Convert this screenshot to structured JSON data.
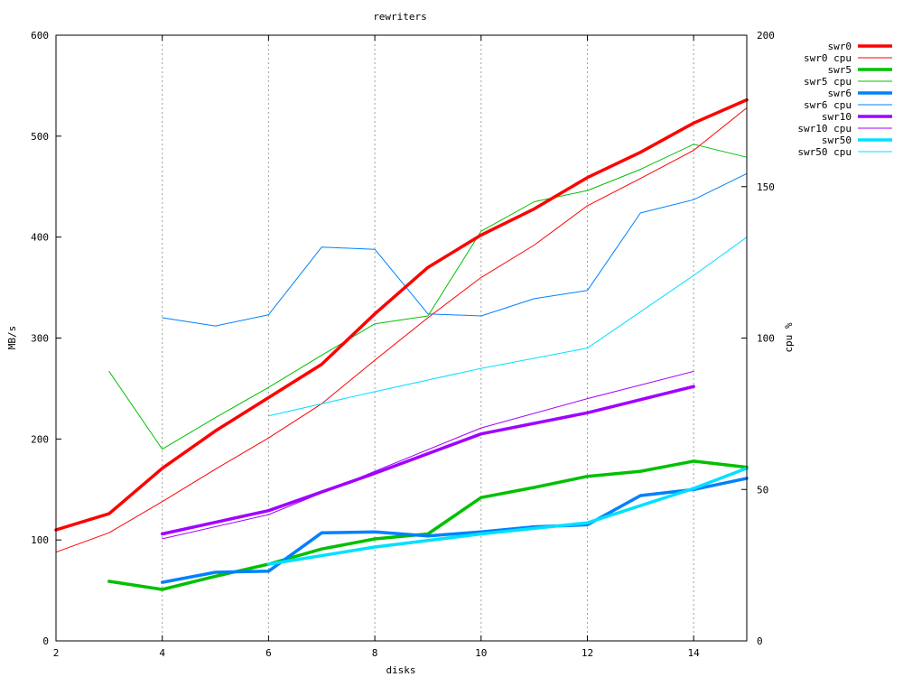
{
  "chart_data": {
    "type": "line",
    "title": "rewriters",
    "xlabel": "disks",
    "ylabel": "MB/s",
    "y2label": "cpu %",
    "xlim": [
      2,
      15
    ],
    "ylim": [
      0,
      600
    ],
    "y2lim": [
      0,
      200
    ],
    "x_ticks": [
      "2",
      "4",
      "6",
      "8",
      "10",
      "12",
      "14"
    ],
    "y_ticks": [
      "0",
      "100",
      "200",
      "300",
      "400",
      "500",
      "600"
    ],
    "y2_ticks": [
      "0",
      "50",
      "100",
      "150",
      "200"
    ],
    "grid": "vertical dotted at x ticks",
    "legend_position": "outside right, top",
    "series": [
      {
        "name": "swr0",
        "axis": "left",
        "color": "#ff0000",
        "thick": true,
        "x": [
          2,
          3,
          4,
          5,
          6,
          7,
          8,
          9,
          10,
          11,
          12,
          13,
          14,
          15
        ],
        "y": [
          110,
          126,
          171,
          208,
          241,
          274,
          324,
          370,
          402,
          428,
          459,
          484,
          513,
          536
        ]
      },
      {
        "name": "swr0 cpu",
        "axis": "right",
        "color": "#ff0000",
        "thick": false,
        "x": [
          2,
          3,
          4,
          5,
          6,
          7,
          8,
          9,
          10,
          11,
          12,
          13,
          14,
          15
        ],
        "y": [
          29.3,
          35.7,
          46,
          56.7,
          67,
          78.3,
          92.7,
          106.7,
          120,
          130.7,
          143.7,
          152.7,
          162,
          176
        ]
      },
      {
        "name": "swr5",
        "axis": "left",
        "color": "#00c000",
        "thick": true,
        "x": [
          3,
          4,
          5,
          6,
          7,
          8,
          9,
          10,
          11,
          12,
          13,
          14,
          15
        ],
        "y": [
          59,
          51,
          64,
          76,
          91,
          101,
          106,
          142,
          152,
          163,
          168,
          178,
          172
        ]
      },
      {
        "name": "swr5 cpu",
        "axis": "right",
        "color": "#00c000",
        "thick": false,
        "x": [
          3,
          4,
          5,
          6,
          7,
          8,
          9,
          10,
          11,
          12,
          13,
          14,
          15
        ],
        "y": [
          89,
          63.3,
          73.7,
          83.7,
          94.3,
          104.7,
          107.3,
          135.3,
          145,
          148.7,
          155.7,
          164,
          159.7
        ]
      },
      {
        "name": "swr6",
        "axis": "left",
        "color": "#0080ff",
        "thick": true,
        "x": [
          4,
          5,
          6,
          7,
          8,
          9,
          10,
          11,
          12,
          13,
          14,
          15
        ],
        "y": [
          58,
          68,
          69,
          107,
          108,
          104,
          108,
          113,
          115,
          144,
          150,
          161
        ]
      },
      {
        "name": "swr6 cpu",
        "axis": "right",
        "color": "#0080ff",
        "thick": false,
        "x": [
          4,
          5,
          6,
          7,
          8,
          9,
          10,
          11,
          12,
          13,
          14,
          15
        ],
        "y": [
          106.7,
          104,
          107.7,
          130,
          129.3,
          108,
          107.3,
          113,
          115.7,
          141.3,
          145.7,
          154.3
        ]
      },
      {
        "name": "swr10",
        "axis": "left",
        "color": "#a000ff",
        "thick": true,
        "x": [
          4,
          6,
          8,
          10,
          12,
          14
        ],
        "y": [
          106,
          129,
          166,
          205,
          226,
          252
        ]
      },
      {
        "name": "swr10 cpu",
        "axis": "right",
        "color": "#a000ff",
        "thick": false,
        "x": [
          4,
          6,
          8,
          10,
          12,
          14
        ],
        "y": [
          33.7,
          41.7,
          56,
          70.3,
          80,
          89
        ]
      },
      {
        "name": "swr50",
        "axis": "left",
        "color": "#00e0ff",
        "thick": true,
        "x": [
          6,
          8,
          10,
          12,
          14,
          15
        ],
        "y": [
          76,
          93,
          106,
          117,
          151,
          171
        ]
      },
      {
        "name": "swr50 cpu",
        "axis": "right",
        "color": "#00e0ff",
        "thick": false,
        "x": [
          6,
          8,
          10,
          12,
          14,
          15
        ],
        "y": [
          74.3,
          82.3,
          90,
          96.7,
          120.7,
          133.3
        ]
      }
    ]
  }
}
